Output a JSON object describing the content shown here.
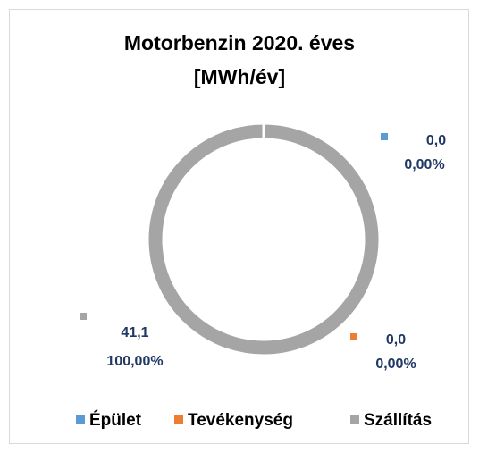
{
  "chart_data": {
    "type": "doughnut",
    "title": [
      "Motorbenzin 2020. éves",
      "[MWh/év]"
    ],
    "categories": [
      "Épület",
      "Tevékenység",
      "Szállítás"
    ],
    "values": [
      0.0,
      0.0,
      41.1
    ],
    "value_labels": [
      "0,0",
      "0,0",
      "41,1"
    ],
    "percents": [
      0,
      0,
      100
    ],
    "percent_labels": [
      "0,00%",
      "0,00%",
      "100,00%"
    ],
    "colors": [
      "#5b9bd5",
      "#ed7d31",
      "#a5a5a5"
    ],
    "legend": "bottom"
  }
}
